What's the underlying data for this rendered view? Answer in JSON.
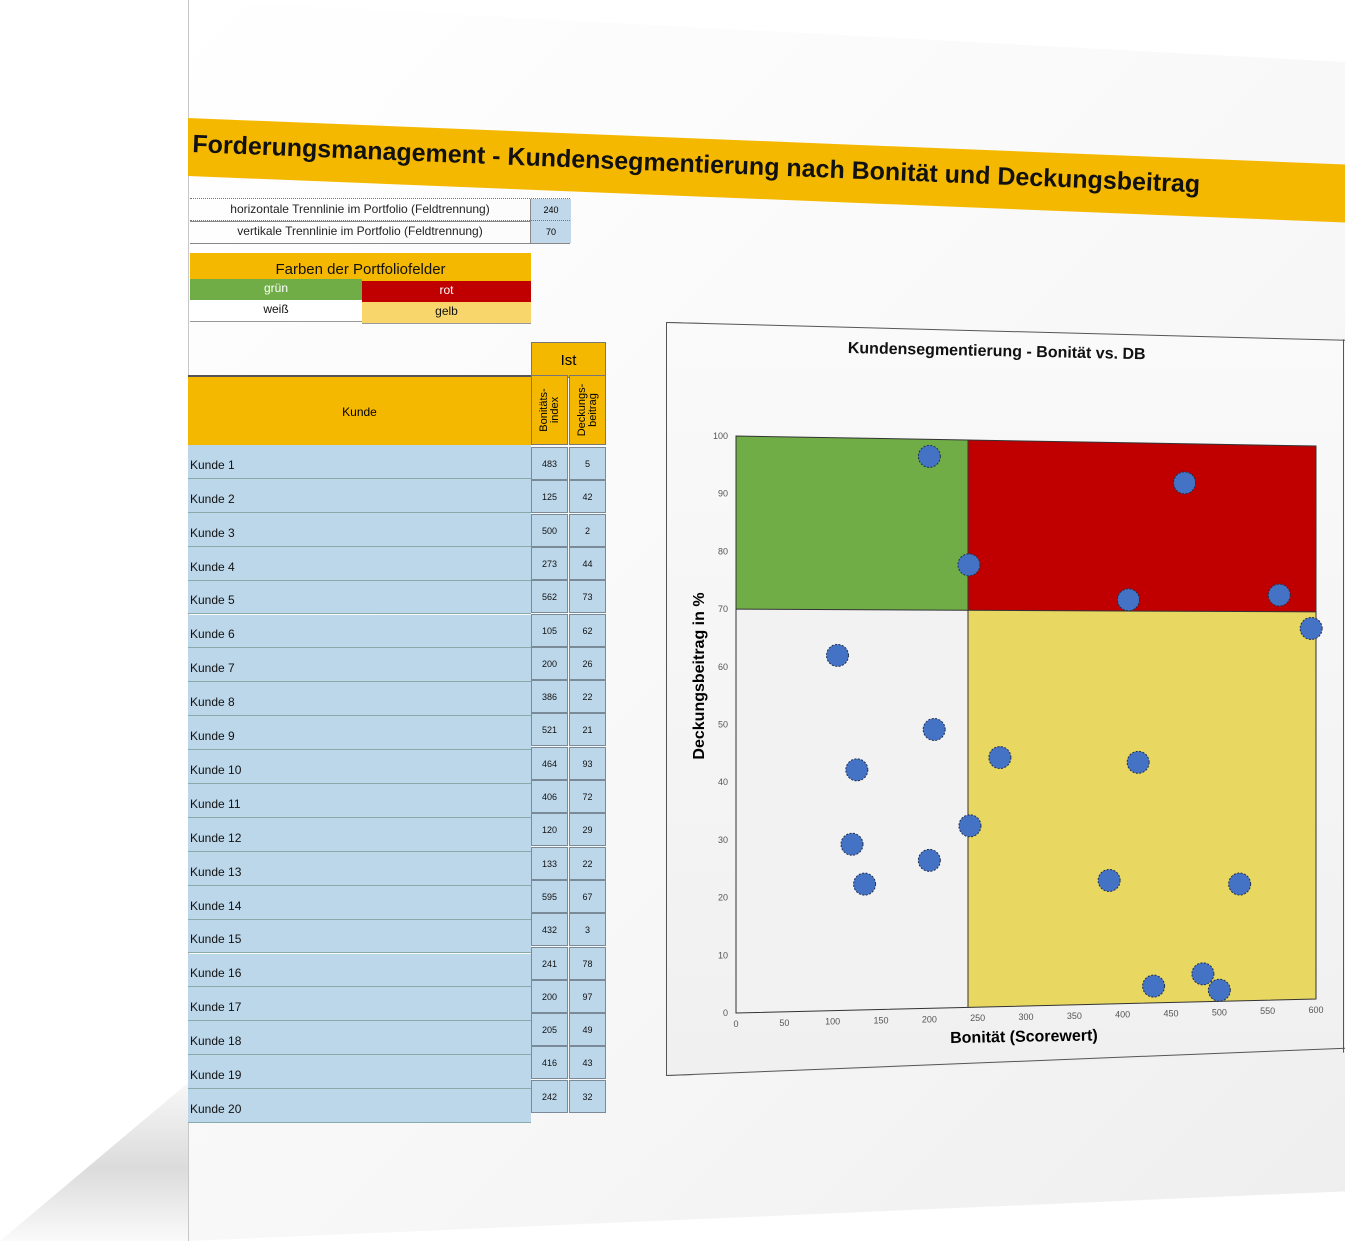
{
  "title": "Forderungsmanagement - Kundensegmentierung nach Bonität und Deckungsbeitrag",
  "settings": [
    {
      "label": "horizontale Trennlinie im Portfolio (Feldtrennung)",
      "value": "240"
    },
    {
      "label": "vertikale Trennlinie im Portfolio (Feldtrennung)",
      "value": "70"
    }
  ],
  "portfolio_colors": {
    "heading": "Farben der Portfoliofelder",
    "cells": [
      {
        "label": "grün",
        "color": "#70ad47",
        "text_color": "#ffffff"
      },
      {
        "label": "rot",
        "color": "#c00000",
        "text_color": "#ffffff"
      },
      {
        "label": "weiß",
        "color": "#ffffff",
        "text_color": "#111111"
      },
      {
        "label": "gelb",
        "color": "#f9d66b",
        "text_color": "#111111"
      }
    ]
  },
  "table": {
    "group_header": "Ist",
    "col_customer": "Kunde",
    "col_bonitaet": "Bonitäts-\nindex",
    "col_db": "Deckungs-\nbeitrag",
    "rows": [
      {
        "name": "Kunde 1",
        "bon": "483",
        "db": "5"
      },
      {
        "name": "Kunde 2",
        "bon": "125",
        "db": "42"
      },
      {
        "name": "Kunde 3",
        "bon": "500",
        "db": "2"
      },
      {
        "name": "Kunde 4",
        "bon": "273",
        "db": "44"
      },
      {
        "name": "Kunde 5",
        "bon": "562",
        "db": "73"
      },
      {
        "name": "Kunde 6",
        "bon": "105",
        "db": "62"
      },
      {
        "name": "Kunde 7",
        "bon": "200",
        "db": "26"
      },
      {
        "name": "Kunde 8",
        "bon": "386",
        "db": "22"
      },
      {
        "name": "Kunde 9",
        "bon": "521",
        "db": "21"
      },
      {
        "name": "Kunde 10",
        "bon": "464",
        "db": "93"
      },
      {
        "name": "Kunde 11",
        "bon": "406",
        "db": "72"
      },
      {
        "name": "Kunde 12",
        "bon": "120",
        "db": "29"
      },
      {
        "name": "Kunde 13",
        "bon": "133",
        "db": "22"
      },
      {
        "name": "Kunde 14",
        "bon": "595",
        "db": "67"
      },
      {
        "name": "Kunde 15",
        "bon": "432",
        "db": "3"
      },
      {
        "name": "Kunde 16",
        "bon": "241",
        "db": "78"
      },
      {
        "name": "Kunde 17",
        "bon": "200",
        "db": "97"
      },
      {
        "name": "Kunde 18",
        "bon": "205",
        "db": "49"
      },
      {
        "name": "Kunde 19",
        "bon": "416",
        "db": "43"
      },
      {
        "name": "Kunde 20",
        "bon": "242",
        "db": "32"
      }
    ]
  },
  "chart_data": {
    "type": "scatter",
    "title": "Kundensegmentierung - Bonität vs. DB",
    "xlabel": "Bonität (Scorewert)",
    "ylabel": "Deckungsbeitrag in %",
    "xlim": [
      0,
      600
    ],
    "ylim": [
      0,
      100
    ],
    "xticks": [
      "0",
      "50",
      "100",
      "150",
      "200",
      "250",
      "300",
      "350",
      "400",
      "450",
      "500",
      "550",
      "600"
    ],
    "yticks": [
      "0",
      "10",
      "20",
      "30",
      "40",
      "50",
      "60",
      "70",
      "80",
      "90",
      "100"
    ],
    "x_split": 240,
    "y_split": 70,
    "quadrant_colors": {
      "top_left": "#70ad47",
      "top_right": "#c00000",
      "bottom_left": "#f2f2f2",
      "bottom_right": "#e8d760"
    },
    "point_color": "#4472c4",
    "points": [
      {
        "x": 483,
        "y": 5
      },
      {
        "x": 125,
        "y": 42
      },
      {
        "x": 500,
        "y": 2
      },
      {
        "x": 273,
        "y": 44
      },
      {
        "x": 562,
        "y": 73
      },
      {
        "x": 105,
        "y": 62
      },
      {
        "x": 200,
        "y": 26
      },
      {
        "x": 386,
        "y": 22
      },
      {
        "x": 521,
        "y": 21
      },
      {
        "x": 464,
        "y": 93
      },
      {
        "x": 406,
        "y": 72
      },
      {
        "x": 120,
        "y": 29
      },
      {
        "x": 133,
        "y": 22
      },
      {
        "x": 595,
        "y": 67
      },
      {
        "x": 432,
        "y": 3
      },
      {
        "x": 241,
        "y": 78
      },
      {
        "x": 200,
        "y": 97
      },
      {
        "x": 205,
        "y": 49
      },
      {
        "x": 416,
        "y": 43
      },
      {
        "x": 242,
        "y": 32
      }
    ]
  }
}
